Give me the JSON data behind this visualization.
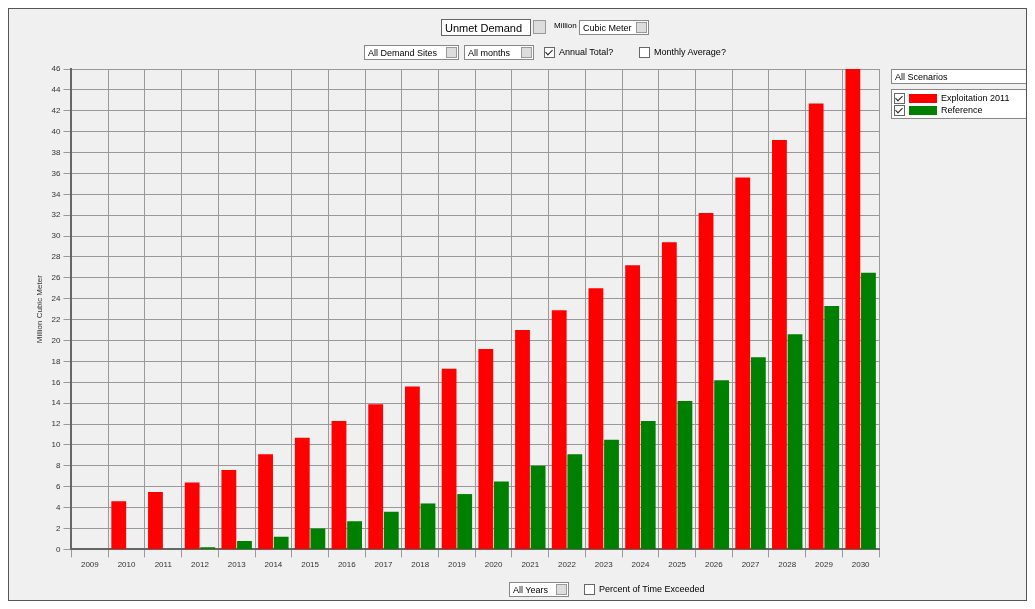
{
  "chart_data": {
    "type": "bar",
    "title": "Unmet Demand",
    "ylabel": "Million Cubic Meter",
    "categories": [
      "2009",
      "2010",
      "2011",
      "2012",
      "2013",
      "2014",
      "2015",
      "2016",
      "2017",
      "2018",
      "2019",
      "2020",
      "2021",
      "2022",
      "2023",
      "2024",
      "2025",
      "2026",
      "2027",
      "2028",
      "2029",
      "2030"
    ],
    "series": [
      {
        "name": "Exploitation 2011",
        "color": "#ff0000",
        "values": [
          0,
          4.6,
          5.5,
          6.4,
          7.6,
          9.1,
          10.7,
          12.3,
          13.9,
          15.6,
          17.3,
          19.2,
          21.0,
          22.9,
          25.0,
          27.2,
          29.4,
          32.2,
          35.6,
          39.2,
          42.7,
          46
        ]
      },
      {
        "name": "Reference",
        "color": "#008000",
        "values": [
          0,
          0,
          0,
          0.2,
          0.8,
          1.2,
          2.0,
          2.7,
          3.6,
          4.4,
          5.3,
          6.5,
          8.0,
          9.1,
          10.5,
          12.3,
          14.2,
          16.2,
          18.4,
          20.6,
          23.3,
          26.5
        ]
      }
    ],
    "ylim": [
      0,
      46
    ],
    "yticks": [
      0,
      2,
      4,
      6,
      8,
      10,
      12,
      14,
      16,
      18,
      20,
      22,
      24,
      26,
      28,
      30,
      32,
      34,
      36,
      38,
      40,
      42,
      44,
      46
    ],
    "grid": true,
    "legend": "top right",
    "annotations": [
      "Million",
      "Cubic Meter",
      "All Demand Sites",
      "All months",
      "Annual Total?",
      "Monthly Average?",
      "All Scenarios",
      "All Years",
      "Percent of Time Exceeded"
    ]
  }
}
